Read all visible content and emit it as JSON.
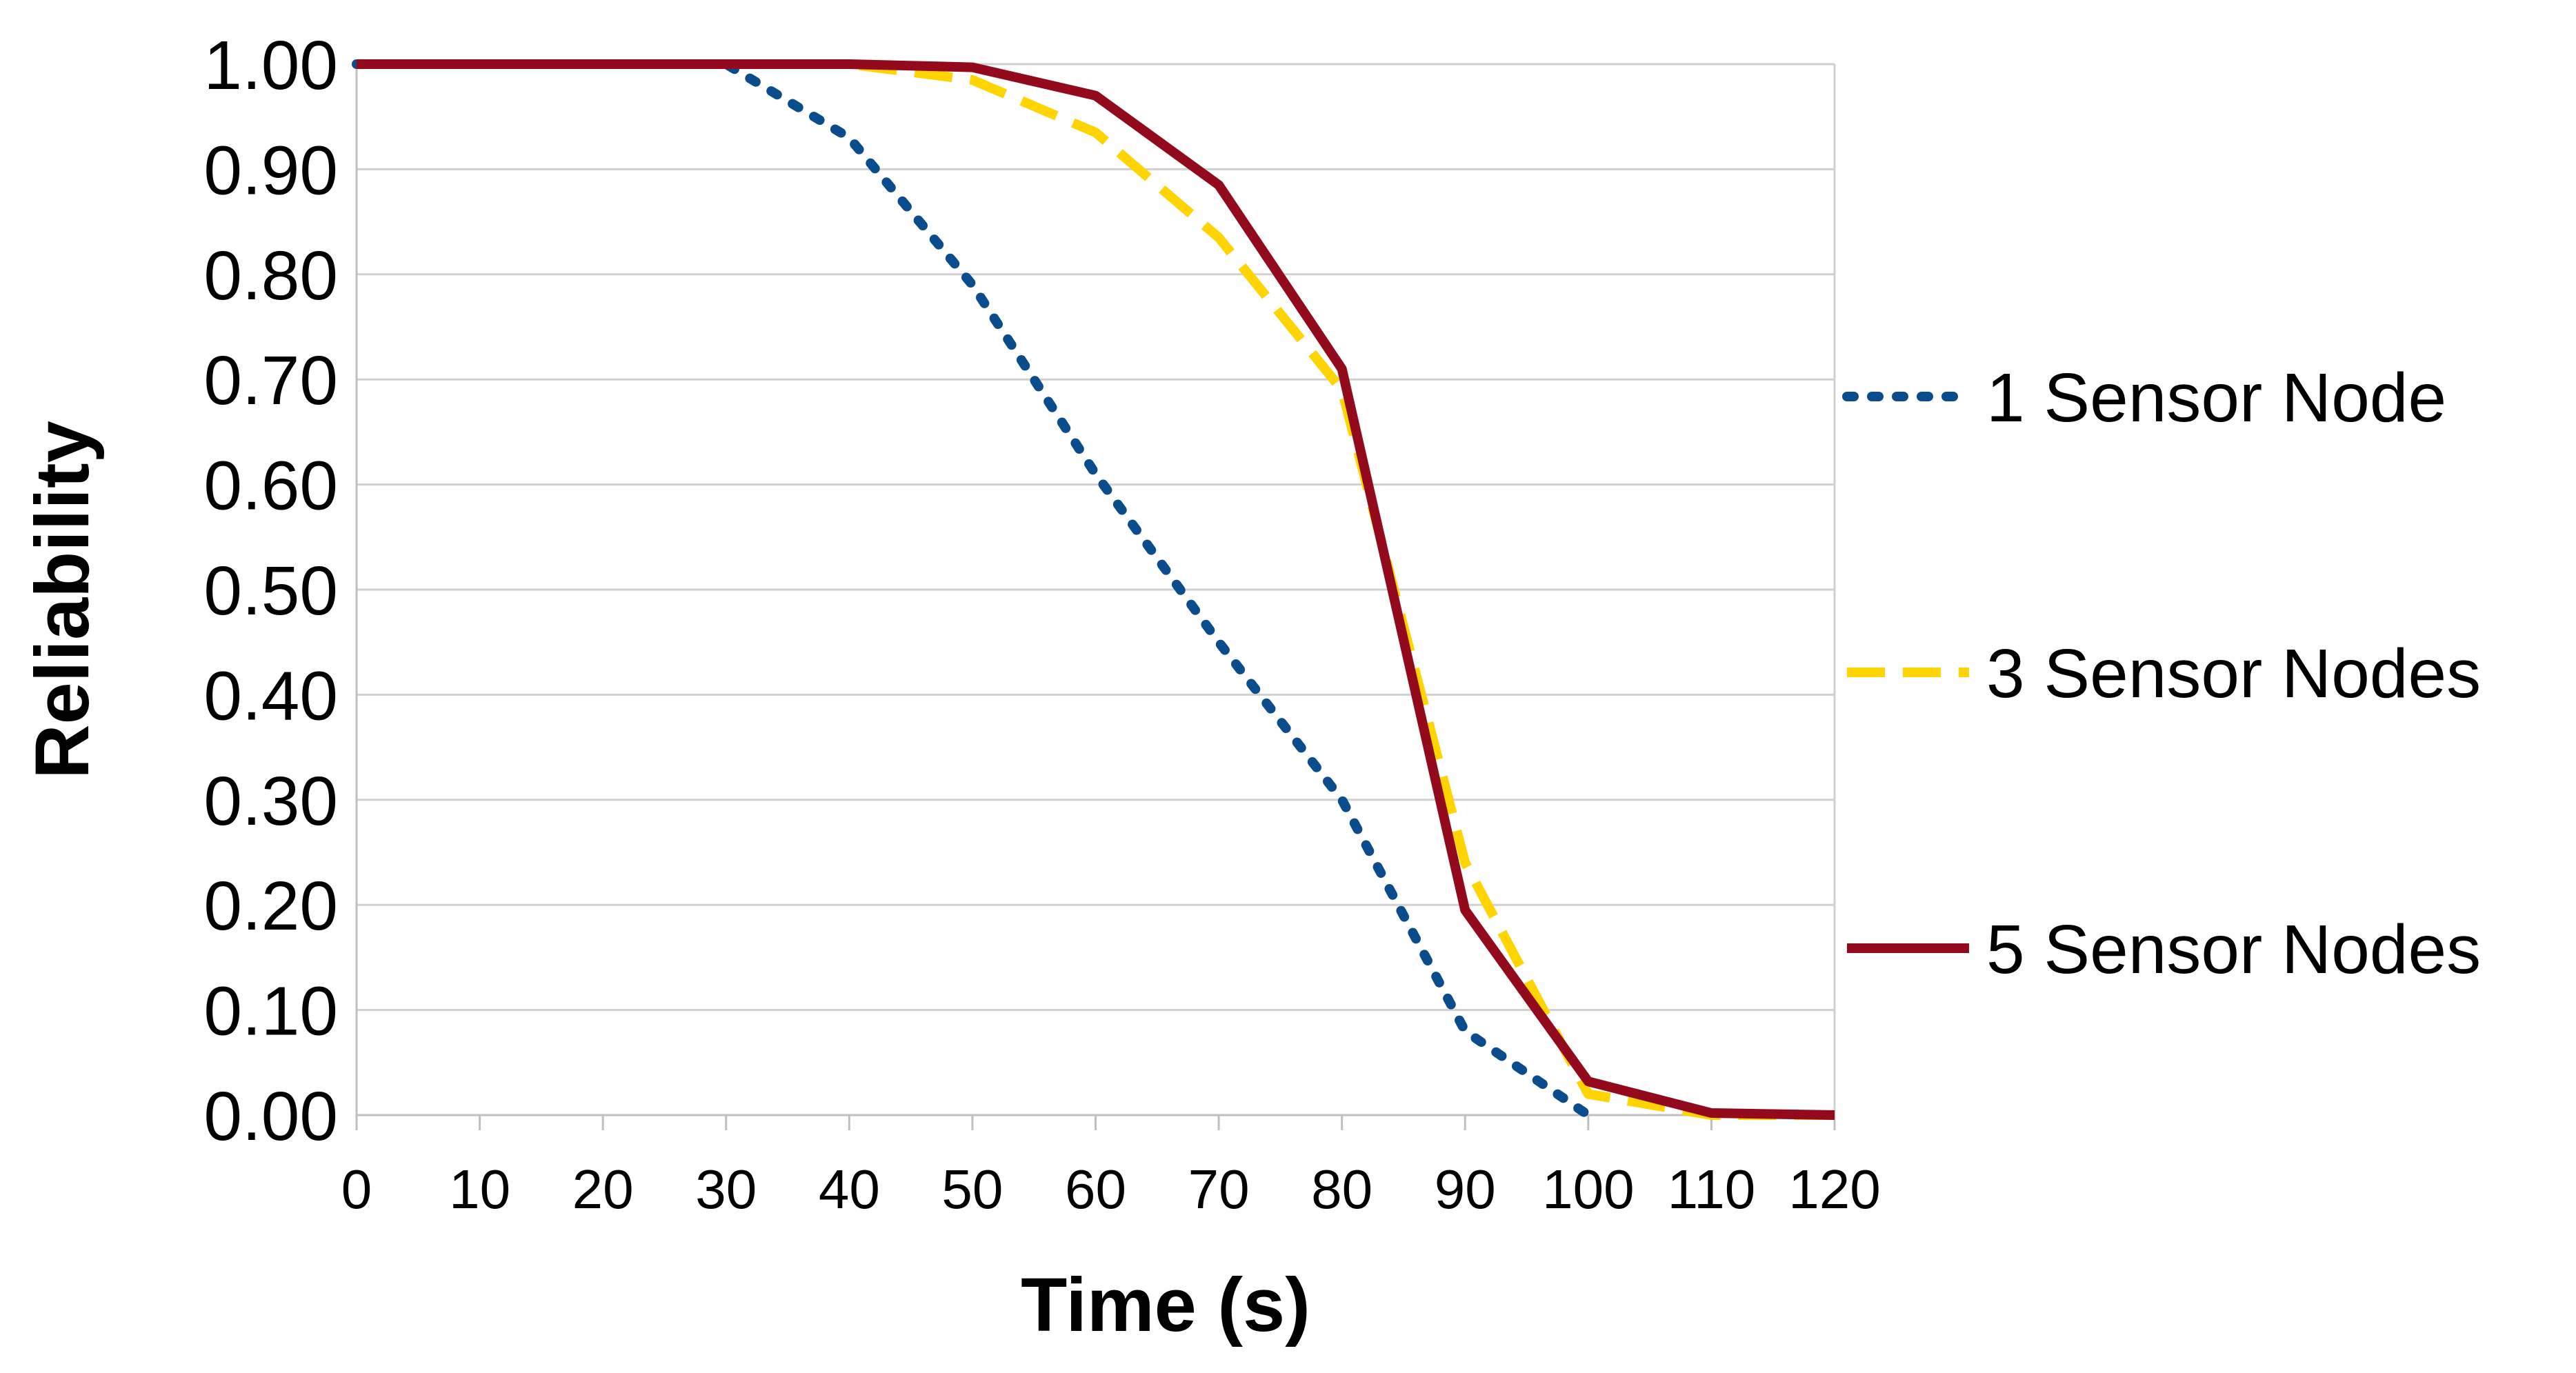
{
  "chart_data": {
    "type": "line",
    "title": "",
    "xlabel": "Time (s)",
    "ylabel": "Reliability",
    "x": [
      0,
      10,
      20,
      30,
      40,
      50,
      60,
      70,
      80,
      90,
      100,
      110,
      120
    ],
    "xlim": [
      0,
      120
    ],
    "ylim": [
      0,
      1
    ],
    "xticks": [
      "0",
      "10",
      "20",
      "30",
      "40",
      "50",
      "60",
      "70",
      "80",
      "90",
      "100",
      "110",
      "120"
    ],
    "yticks": [
      "0.00",
      "0.10",
      "0.20",
      "0.30",
      "0.40",
      "0.50",
      "0.60",
      "0.70",
      "0.80",
      "0.90",
      "1.00"
    ],
    "grid": true,
    "legend_position": "right",
    "series": [
      {
        "name": "1 Sensor Node",
        "color": "#0b4d8c",
        "style": "dotted",
        "values": [
          1.0,
          1.0,
          1.0,
          1.0,
          0.93,
          0.79,
          0.61,
          0.45,
          0.3,
          0.08,
          0.0,
          null,
          null
        ]
      },
      {
        "name": "3 Sensor Nodes",
        "color": "#ffd400",
        "style": "dashed",
        "values": [
          1.0,
          1.0,
          1.0,
          1.0,
          1.0,
          0.985,
          0.935,
          0.835,
          0.69,
          0.24,
          0.02,
          0.0,
          0.0
        ]
      },
      {
        "name": "5 Sensor Nodes",
        "color": "#920a1c",
        "style": "solid",
        "values": [
          1.0,
          1.0,
          1.0,
          1.0,
          1.0,
          0.997,
          0.97,
          0.885,
          0.71,
          0.195,
          0.032,
          0.002,
          0.0
        ]
      }
    ]
  }
}
